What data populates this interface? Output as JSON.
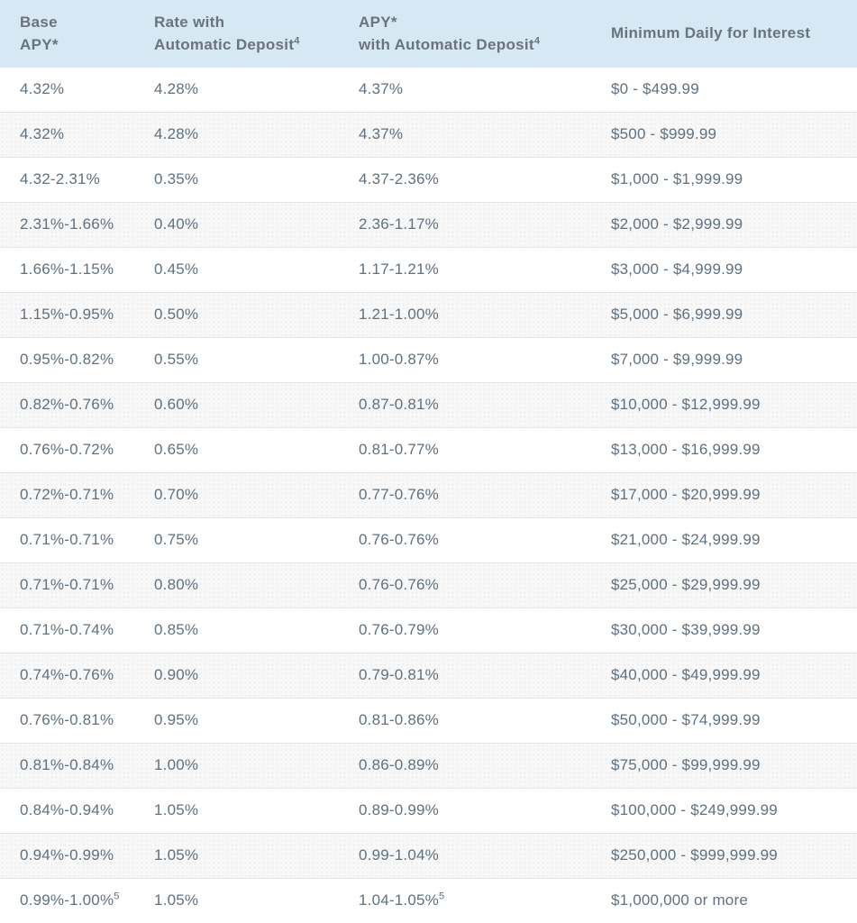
{
  "colors": {
    "header_bg": "#d5e8f3",
    "header_text": "#6b737e",
    "body_text": "#5e7183",
    "stripe_bg": "#f7f8f7",
    "row_border": "#e3e6e6",
    "page_bg": "#ffffff"
  },
  "table": {
    "columns": [
      {
        "line1": "Base",
        "line2": "APY*"
      },
      {
        "line1": "Rate with",
        "line2": "Automatic Deposit",
        "sup": "4"
      },
      {
        "line1": "APY*",
        "line2": "with Automatic Deposit",
        "sup": "4"
      },
      {
        "line1": "Minimum Daily for Interest"
      }
    ],
    "rows": [
      [
        "4.32%",
        "4.28%",
        "4.37%",
        "$0 - $499.99"
      ],
      [
        "4.32%",
        "4.28%",
        "4.37%",
        "$500 - $999.99"
      ],
      [
        "4.32-2.31%",
        "0.35%",
        "4.37-2.36%",
        "$1,000 - $1,999.99"
      ],
      [
        "2.31%-1.66%",
        "0.40%",
        "2.36-1.17%",
        "$2,000 - $2,999.99"
      ],
      [
        "1.66%-1.15%",
        "0.45%",
        "1.17-1.21%",
        "$3,000 - $4,999.99"
      ],
      [
        "1.15%-0.95%",
        "0.50%",
        "1.21-1.00%",
        "$5,000 - $6,999.99"
      ],
      [
        "0.95%-0.82%",
        "0.55%",
        "1.00-0.87%",
        "$7,000 - $9,999.99"
      ],
      [
        "0.82%-0.76%",
        "0.60%",
        "0.87-0.81%",
        "$10,000 - $12,999.99"
      ],
      [
        "0.76%-0.72%",
        "0.65%",
        "0.81-0.77%",
        "$13,000 - $16,999.99"
      ],
      [
        "0.72%-0.71%",
        "0.70%",
        "0.77-0.76%",
        "$17,000 - $20,999.99"
      ],
      [
        "0.71%-0.71%",
        "0.75%",
        "0.76-0.76%",
        "$21,000 - $24,999.99"
      ],
      [
        "0.71%-0.71%",
        "0.80%",
        "0.76-0.76%",
        "$25,000 - $29,999.99"
      ],
      [
        "0.71%-0.74%",
        "0.85%",
        "0.76-0.79%",
        "$30,000 - $39,999.99"
      ],
      [
        "0.74%-0.76%",
        "0.90%",
        "0.79-0.81%",
        "$40,000 - $49,999.99"
      ],
      [
        "0.76%-0.81%",
        "0.95%",
        "0.81-0.86%",
        "$50,000 - $74,999.99"
      ],
      [
        "0.81%-0.84%",
        "1.00%",
        "0.86-0.89%",
        "$75,000 - $99,999.99"
      ],
      [
        "0.84%-0.94%",
        "1.05%",
        "0.89-0.99%",
        "$100,000 - $249,999.99"
      ],
      [
        "0.94%-0.99%",
        "1.05%",
        "0.99-1.04%",
        "$250,000 - $999,999.99"
      ],
      [
        {
          "t": "0.99%-1.00%",
          "sup": "5"
        },
        "1.05%",
        {
          "t": "1.04-1.05%",
          "sup": "5"
        },
        "$1,000,000 or more"
      ]
    ]
  }
}
